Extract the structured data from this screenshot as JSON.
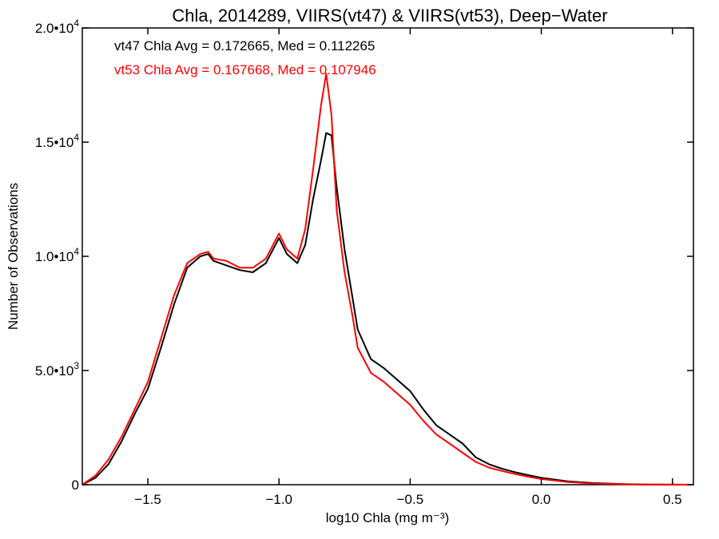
{
  "chart_data": {
    "type": "line",
    "title": "Chla, 2014289, VIIRS(vt47) & VIIRS(vt53), Deep−Water",
    "xlabel": "log10 Chla (mg m⁻³)",
    "ylabel": "Number of Observations",
    "xlim": [
      -1.75,
      0.58
    ],
    "ylim": [
      0,
      20000
    ],
    "x_ticks": [
      -1.5,
      -1.0,
      -0.5,
      0.0,
      0.5
    ],
    "x_tick_labels": [
      "−1.5",
      "−1.0",
      "−0.5",
      "0.0",
      "0.5"
    ],
    "y_ticks": [
      0,
      5000,
      10000,
      15000,
      20000
    ],
    "y_tick_labels": [
      {
        "mantissa": "0",
        "exp": ""
      },
      {
        "mantissa": "5.0•10",
        "exp": "3"
      },
      {
        "mantissa": "1.0•10",
        "exp": "4"
      },
      {
        "mantissa": "1.5•10",
        "exp": "4"
      },
      {
        "mantissa": "2.0•10",
        "exp": "4"
      }
    ],
    "grid": false,
    "annotations": [
      {
        "text": "vt47 Chla Avg = 0.172665, Med = 0.112265",
        "color": "#000000"
      },
      {
        "text": "vt53 Chla Avg = 0.167668, Med = 0.107946",
        "color": "#ff0000"
      }
    ],
    "series": [
      {
        "color": "#000000",
        "x": [
          -1.75,
          -1.7,
          -1.65,
          -1.6,
          -1.55,
          -1.5,
          -1.45,
          -1.4,
          -1.35,
          -1.3,
          -1.27,
          -1.25,
          -1.2,
          -1.15,
          -1.1,
          -1.05,
          -1.0,
          -0.97,
          -0.93,
          -0.9,
          -0.87,
          -0.84,
          -0.82,
          -0.8,
          -0.78,
          -0.75,
          -0.72,
          -0.7,
          -0.65,
          -0.6,
          -0.55,
          -0.5,
          -0.45,
          -0.4,
          -0.35,
          -0.3,
          -0.25,
          -0.2,
          -0.15,
          -0.1,
          -0.05,
          0.0,
          0.1,
          0.2,
          0.3,
          0.4,
          0.5,
          0.58
        ],
        "y": [
          0,
          300,
          900,
          1900,
          3100,
          4200,
          6000,
          7900,
          9500,
          10000,
          10100,
          9800,
          9600,
          9400,
          9300,
          9700,
          10800,
          10100,
          9700,
          10500,
          12500,
          14200,
          15400,
          15300,
          13000,
          10300,
          8200,
          6800,
          5500,
          5100,
          4600,
          4100,
          3300,
          2600,
          2200,
          1800,
          1200,
          900,
          700,
          550,
          420,
          300,
          150,
          70,
          30,
          10,
          5,
          0
        ]
      },
      {
        "color": "#ff0000",
        "x": [
          -1.75,
          -1.7,
          -1.65,
          -1.6,
          -1.55,
          -1.5,
          -1.45,
          -1.4,
          -1.35,
          -1.3,
          -1.27,
          -1.25,
          -1.2,
          -1.15,
          -1.1,
          -1.05,
          -1.0,
          -0.97,
          -0.93,
          -0.9,
          -0.87,
          -0.84,
          -0.82,
          -0.8,
          -0.78,
          -0.75,
          -0.72,
          -0.7,
          -0.65,
          -0.6,
          -0.55,
          -0.5,
          -0.45,
          -0.4,
          -0.35,
          -0.3,
          -0.25,
          -0.2,
          -0.15,
          -0.1,
          -0.05,
          0.0,
          0.1,
          0.2,
          0.3,
          0.4,
          0.5,
          0.58
        ],
        "y": [
          0,
          400,
          1100,
          2100,
          3300,
          4500,
          6400,
          8300,
          9700,
          10100,
          10200,
          9900,
          9800,
          9500,
          9500,
          9900,
          11000,
          10300,
          9900,
          11200,
          13800,
          16600,
          18000,
          16200,
          12000,
          9300,
          7400,
          6000,
          4900,
          4500,
          4000,
          3500,
          2800,
          2200,
          1800,
          1400,
          1000,
          750,
          600,
          470,
          350,
          250,
          120,
          50,
          20,
          8,
          3,
          0
        ]
      }
    ]
  }
}
